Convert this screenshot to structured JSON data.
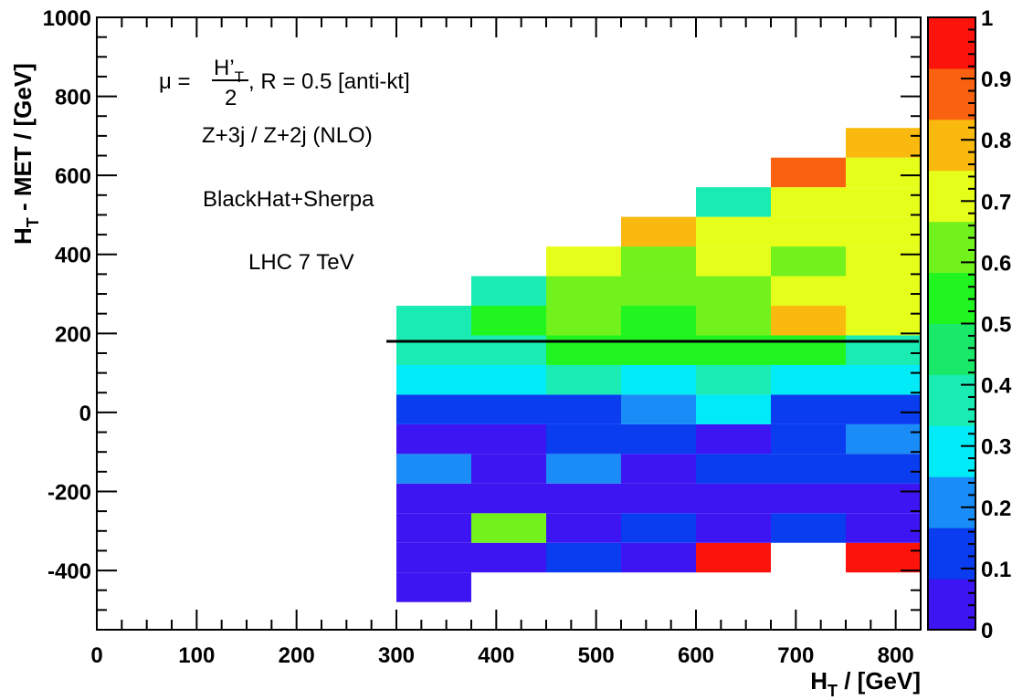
{
  "chart_data": {
    "type": "heatmap",
    "xlabel": "H",
    "xlabel_sub": "T",
    "xlabel_unit": " / [GeV]",
    "ylabel": "H",
    "ylabel_sub": "T",
    "ylabel_rest": " - MET / [GeV]",
    "xlim": [
      0,
      825
    ],
    "ylim": [
      -550,
      1000
    ],
    "x_ticks": [
      "0",
      "100",
      "200",
      "300",
      "400",
      "500",
      "600",
      "700",
      "800"
    ],
    "y_ticks": [
      "-400",
      "-200",
      "0",
      "200",
      "400",
      "600",
      "800",
      "1000"
    ],
    "z_range": [
      0,
      1
    ],
    "z_ticks": [
      "0",
      "0.1",
      "0.2",
      "0.3",
      "0.4",
      "0.5",
      "0.6",
      "0.7",
      "0.8",
      "0.9",
      "1"
    ],
    "x_bins": [
      [
        300,
        375
      ],
      [
        375,
        450
      ],
      [
        450,
        525
      ],
      [
        525,
        600
      ],
      [
        600,
        675
      ],
      [
        675,
        750
      ],
      [
        750,
        825
      ]
    ],
    "y_bins": [
      [
        -480,
        -405
      ],
      [
        -405,
        -330
      ],
      [
        -330,
        -255
      ],
      [
        -255,
        -180
      ],
      [
        -180,
        -105
      ],
      [
        -105,
        -30
      ],
      [
        -30,
        45
      ],
      [
        45,
        120
      ],
      [
        120,
        195
      ],
      [
        195,
        270
      ],
      [
        270,
        345
      ],
      [
        345,
        420
      ],
      [
        420,
        495
      ],
      [
        495,
        570
      ],
      [
        570,
        645
      ],
      [
        645,
        720
      ]
    ],
    "z_values": [
      [
        0.05,
        null,
        null,
        null,
        null,
        null,
        null
      ],
      [
        0.05,
        0.05,
        0.15,
        0.05,
        1.0,
        null,
        1.0
      ],
      [
        0.05,
        0.65,
        0.05,
        0.15,
        0.05,
        0.15,
        0.05
      ],
      [
        0.05,
        0.05,
        0.05,
        0.05,
        0.05,
        0.05,
        0.05
      ],
      [
        0.25,
        0.05,
        0.25,
        0.05,
        0.15,
        0.15,
        0.15
      ],
      [
        0.05,
        0.05,
        0.15,
        0.15,
        0.05,
        0.15,
        0.25
      ],
      [
        0.15,
        0.15,
        0.15,
        0.25,
        0.35,
        0.15,
        0.15
      ],
      [
        0.35,
        0.35,
        0.45,
        0.35,
        0.45,
        0.35,
        0.35
      ],
      [
        0.45,
        0.45,
        0.55,
        0.55,
        0.55,
        0.55,
        0.45
      ],
      [
        0.45,
        0.55,
        0.65,
        0.55,
        0.65,
        0.85,
        0.75
      ],
      [
        null,
        0.45,
        0.65,
        0.65,
        0.65,
        0.75,
        0.75
      ],
      [
        null,
        null,
        0.75,
        0.65,
        0.75,
        0.65,
        0.75
      ],
      [
        null,
        null,
        null,
        0.85,
        0.75,
        0.75,
        0.75
      ],
      [
        null,
        null,
        null,
        null,
        0.45,
        0.75,
        0.75
      ],
      [
        null,
        null,
        null,
        null,
        null,
        0.95,
        0.75
      ],
      [
        null,
        null,
        null,
        null,
        null,
        null,
        0.85
      ]
    ],
    "palette": [
      "#3d14f2",
      "#0a3cf0",
      "#1a8cf7",
      "#00ebf7",
      "#1aebb2",
      "#1ae868",
      "#20f51f",
      "#72f21c",
      "#e6ff1a",
      "#fab90f",
      "#fa6110",
      "#fc130c"
    ],
    "reference_line": {
      "y": 180,
      "x_range": [
        290,
        825
      ]
    },
    "annotations": {
      "scale_prefix": "μ = ",
      "scale_numerator": "H’",
      "scale_numerator_sub": "T",
      "scale_denominator": "2",
      "scale_suffix": ",  R = 0.5 [anti-kt]",
      "process": "Z+3j / Z+2j (NLO)",
      "generator": "BlackHat+Sherpa",
      "collider": "LHC 7 TeV"
    }
  }
}
